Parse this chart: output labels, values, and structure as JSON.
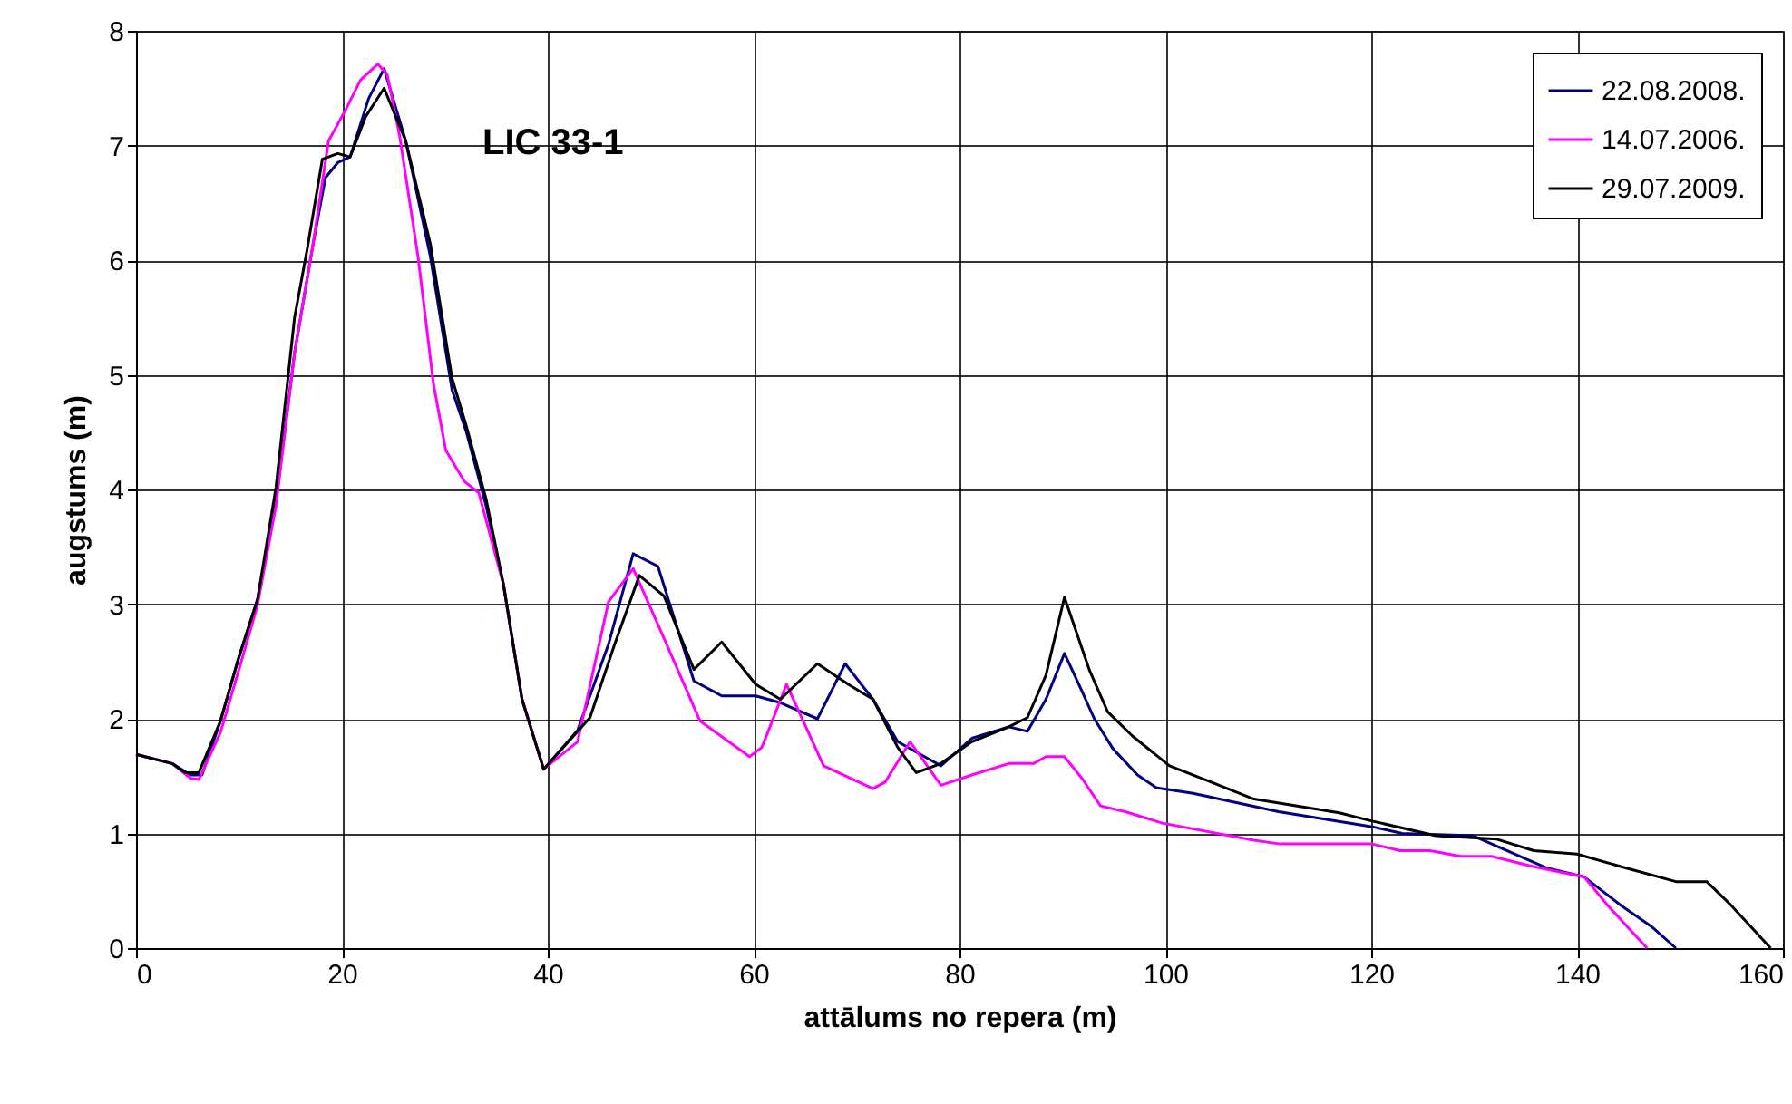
{
  "chart_data": {
    "type": "line",
    "xlabel": "attālums no repera (m)",
    "ylabel": "augstums (m)",
    "annotations": [
      "LIC 33-1"
    ],
    "xlim": [
      0,
      160
    ],
    "ylim": [
      0,
      8
    ],
    "xticks": [
      0,
      20,
      40,
      60,
      80,
      100,
      120,
      140,
      160
    ],
    "yticks": [
      0,
      1,
      2,
      3,
      4,
      5,
      6,
      7,
      8
    ],
    "grid": true,
    "legend": "top right",
    "marker": "none",
    "line_style": "solid",
    "series": [
      {
        "name": "22.08.2008.",
        "color": "#000080",
        "x": [
          0,
          3.5,
          5.3,
          6.4,
          8.2,
          10,
          11.8,
          13.6,
          15.4,
          17.2,
          18.4,
          19.6,
          20.8,
          22.6,
          24.1,
          26.2,
          28.6,
          30.7,
          32.1,
          34,
          35.7,
          37.5,
          39.6,
          42.9,
          45.9,
          48.3,
          50.7,
          54.2,
          56.9,
          60.2,
          62.6,
          66.2,
          68.9,
          71.6,
          74,
          78.2,
          81.2,
          84.8,
          86.6,
          88.4,
          90.2,
          91.6,
          93.1,
          94.9,
          97.3,
          99.1,
          102.7,
          111,
          120,
          123,
          129.9,
          137,
          140.7,
          144.3,
          147.2,
          149.6
        ],
        "values": [
          1.69,
          1.61,
          1.51,
          1.51,
          1.98,
          2.54,
          3.04,
          3.91,
          5.19,
          6.14,
          6.72,
          6.85,
          6.9,
          7.41,
          7.67,
          7.04,
          6.03,
          4.87,
          4.5,
          3.86,
          3.17,
          2.17,
          1.56,
          1.9,
          2.65,
          3.44,
          3.33,
          2.33,
          2.2,
          2.2,
          2.14,
          2.0,
          2.48,
          2.17,
          1.8,
          1.59,
          1.83,
          1.93,
          1.89,
          2.17,
          2.57,
          2.3,
          2.0,
          1.74,
          1.51,
          1.4,
          1.35,
          1.19,
          1.06,
          1.0,
          0.98,
          0.7,
          0.62,
          0.37,
          0.19,
          0
        ]
      },
      {
        "name": "14.07.2006.",
        "color": "#ff00ff",
        "x": [
          0,
          3.5,
          5.3,
          6.1,
          8.2,
          10,
          11.8,
          13.6,
          15.4,
          17.2,
          18.7,
          20.3,
          21.8,
          23.5,
          24.4,
          25.6,
          27.4,
          28.9,
          30.1,
          31.9,
          33.3,
          35.7,
          37.5,
          39.6,
          42.9,
          45.9,
          48.3,
          51.3,
          54.8,
          59.6,
          60.8,
          63.2,
          66.8,
          71.6,
          72.8,
          75.2,
          78.2,
          81.2,
          84.8,
          87.2,
          88.4,
          90.2,
          91.9,
          93.7,
          96.1,
          99.7,
          108.6,
          111,
          120,
          122.8,
          125.7,
          128.7,
          131.7,
          135.8,
          140.7,
          143,
          146.8
        ],
        "values": [
          1.69,
          1.61,
          1.48,
          1.47,
          1.88,
          2.43,
          2.99,
          3.86,
          5.19,
          6.14,
          7.04,
          7.3,
          7.57,
          7.71,
          7.62,
          7.09,
          6.03,
          4.92,
          4.34,
          4.07,
          3.97,
          3.17,
          2.17,
          1.56,
          1.8,
          3.02,
          3.31,
          2.7,
          1.98,
          1.67,
          1.75,
          2.3,
          1.59,
          1.39,
          1.45,
          1.8,
          1.42,
          1.51,
          1.61,
          1.61,
          1.67,
          1.67,
          1.48,
          1.24,
          1.19,
          1.09,
          0.94,
          0.91,
          0.91,
          0.85,
          0.85,
          0.8,
          0.8,
          0.71,
          0.62,
          0.37,
          0
        ]
      },
      {
        "name": "29.07.2009.",
        "color": "#000000",
        "x": [
          0,
          3.5,
          4.8,
          6.1,
          8.2,
          10,
          11.8,
          13.6,
          15.4,
          16.6,
          18.1,
          19.6,
          20.8,
          22.3,
          24.1,
          26.2,
          28.6,
          30.7,
          32.1,
          34,
          35.7,
          37.5,
          39.6,
          44.1,
          46.5,
          48.9,
          51.3,
          54.2,
          56.9,
          60.2,
          62.6,
          66.2,
          69.2,
          71.6,
          74,
          75.8,
          78.2,
          81.2,
          84.8,
          86.6,
          88.4,
          90.2,
          92.6,
          94.4,
          96.8,
          100.4,
          104.4,
          108.6,
          116.9,
          120,
          126.3,
          132.2,
          135.8,
          140,
          144.3,
          149.6,
          152.6,
          155,
          158.8
        ],
        "values": [
          1.69,
          1.61,
          1.53,
          1.53,
          1.98,
          2.54,
          3.04,
          4.02,
          5.5,
          6.08,
          6.88,
          6.93,
          6.9,
          7.25,
          7.5,
          7.04,
          6.14,
          4.97,
          4.55,
          3.92,
          3.17,
          2.17,
          1.56,
          2.01,
          2.65,
          3.25,
          3.07,
          2.43,
          2.67,
          2.3,
          2.17,
          2.48,
          2.3,
          2.17,
          1.75,
          1.53,
          1.61,
          1.8,
          1.93,
          2.01,
          2.38,
          3.06,
          2.43,
          2.06,
          1.85,
          1.59,
          1.45,
          1.3,
          1.18,
          1.11,
          0.98,
          0.95,
          0.85,
          0.82,
          0.71,
          0.58,
          0.58,
          0.37,
          0
        ]
      }
    ]
  }
}
